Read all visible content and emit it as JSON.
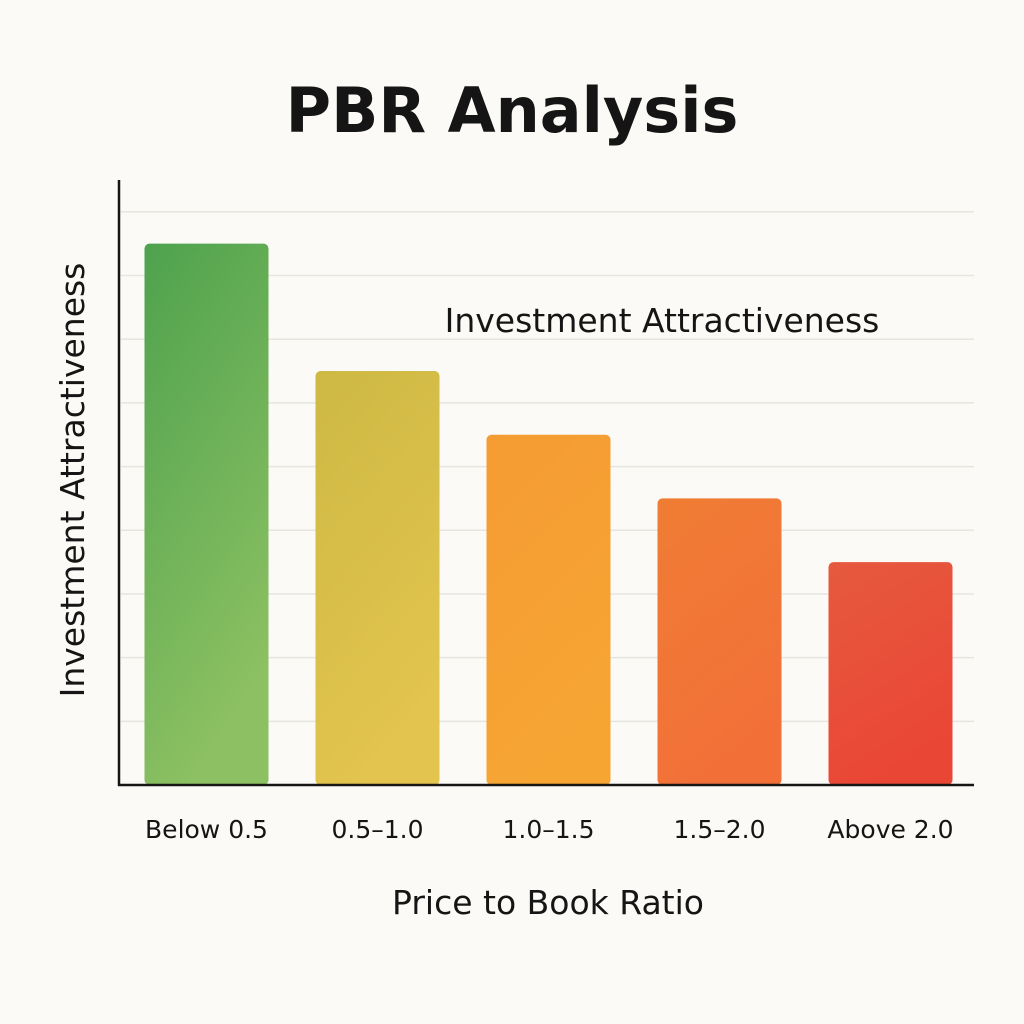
{
  "chart_data": {
    "type": "bar",
    "title": "PBR Analysis",
    "xlabel": "Price to Book Ratio",
    "ylabel": "Investment Attractiveness",
    "annotation": "Investment Attractiveness",
    "categories": [
      "Below 0.5",
      "0.5–1.0",
      "1.0–1.5",
      "1.5–2.0",
      "Above 2.0"
    ],
    "values": [
      8.5,
      6.5,
      5.5,
      4.5,
      3.5
    ],
    "ylim": [
      0,
      9.5
    ],
    "grid": true,
    "legend": "none",
    "bar_colors": [
      [
        "#4ea24e",
        "#8cc062"
      ],
      [
        "#cdb944",
        "#e2c44e"
      ],
      [
        "#f59b33",
        "#f6a533"
      ],
      [
        "#f07d34",
        "#f27038"
      ],
      [
        "#e65a3e",
        "#ea4636"
      ]
    ]
  }
}
